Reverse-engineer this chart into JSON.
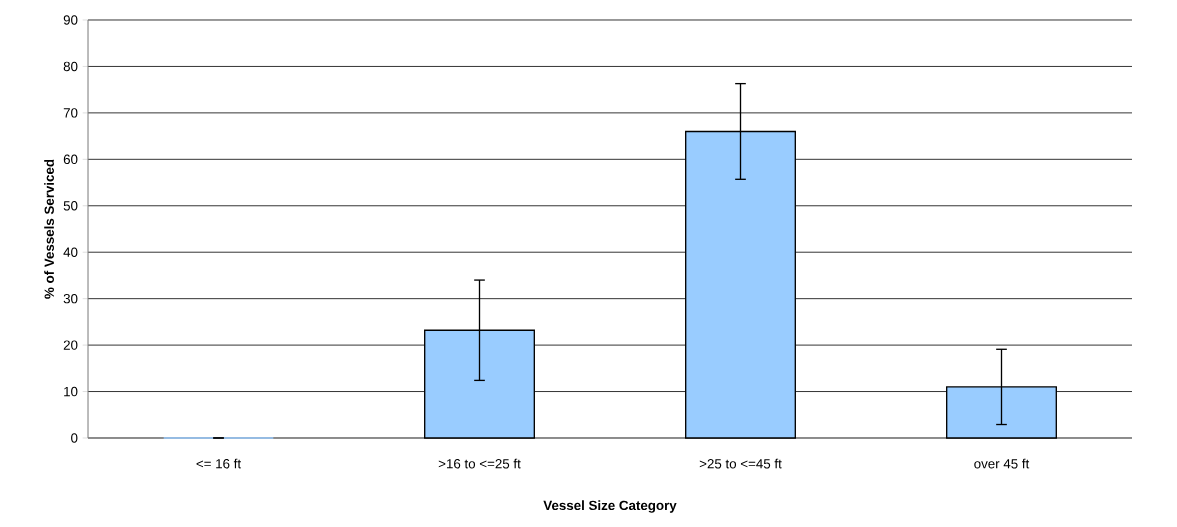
{
  "chart_data": {
    "type": "bar",
    "xlabel": "Vessel Size Category",
    "ylabel": "% of Vessels Serviced",
    "categories": [
      "<= 16 ft",
      ">16 to <=25 ft",
      ">25 to <=45 ft",
      "over 45 ft"
    ],
    "values": [
      0,
      23.2,
      66,
      11
    ],
    "errors": [
      0,
      10.8,
      10.3,
      8.1
    ],
    "color": "#99ccff",
    "ylim": [
      0,
      90
    ],
    "yticks": [
      0,
      10,
      20,
      30,
      40,
      50,
      60,
      70,
      80,
      90
    ],
    "grid": "y"
  }
}
